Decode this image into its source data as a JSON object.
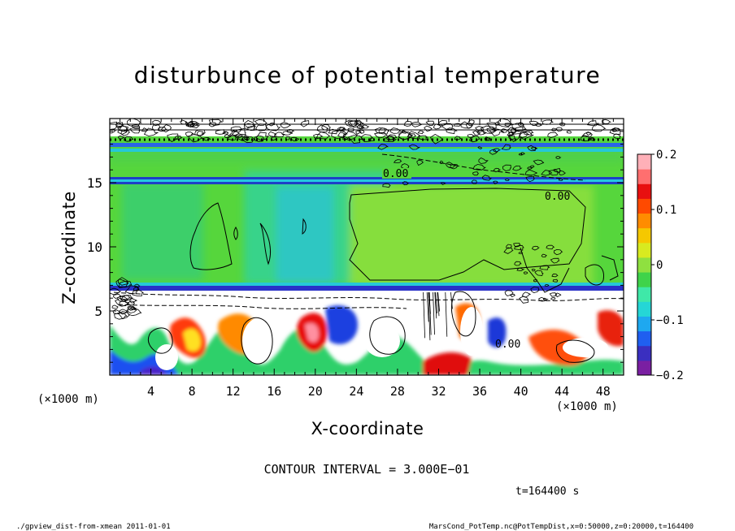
{
  "chart_data": {
    "type": "heatmap",
    "title": "disturbunce of potential temperature",
    "xlabel": "X-coordinate",
    "ylabel": "Z-coordinate",
    "x_unit": "(×1000 m)",
    "y_unit": "(×1000 m)",
    "xlim": [
      0,
      50
    ],
    "ylim": [
      0,
      20
    ],
    "x_ticks": [
      "4",
      "8",
      "12",
      "16",
      "20",
      "24",
      "28",
      "32",
      "36",
      "40",
      "44",
      "48"
    ],
    "y_ticks": [
      "5",
      "10",
      "15"
    ],
    "colorbar": {
      "min": -0.2,
      "max": 0.2,
      "tick_labels": [
        "0.2",
        "0.1",
        "0",
        "−0.1",
        "−0.2"
      ],
      "colors": [
        "#7a1fa2",
        "#3a2fc0",
        "#1f5ff0",
        "#1ea8f0",
        "#25d6d6",
        "#3fe8a8",
        "#3fd34a",
        "#8fe040",
        "#d8ea20",
        "#f5c800",
        "#ff8c00",
        "#ff4a00",
        "#e81010",
        "#ff6f6f",
        "#ffb0b8"
      ]
    },
    "contour_labels": [
      "0.00",
      "0.00",
      "0.00"
    ],
    "annotations": {
      "contour_interval": "CONTOUR INTERVAL = 3.000E−01",
      "time": "t=164400  s",
      "footer_left": "./gpview_dist-from-xmean  2011-01-01",
      "footer_right": "MarsCond_PotTemp.nc@PotTempDist,x=0:50000,z=0:20000,t=164400"
    },
    "legend": "colorbar-right",
    "grid": false
  }
}
